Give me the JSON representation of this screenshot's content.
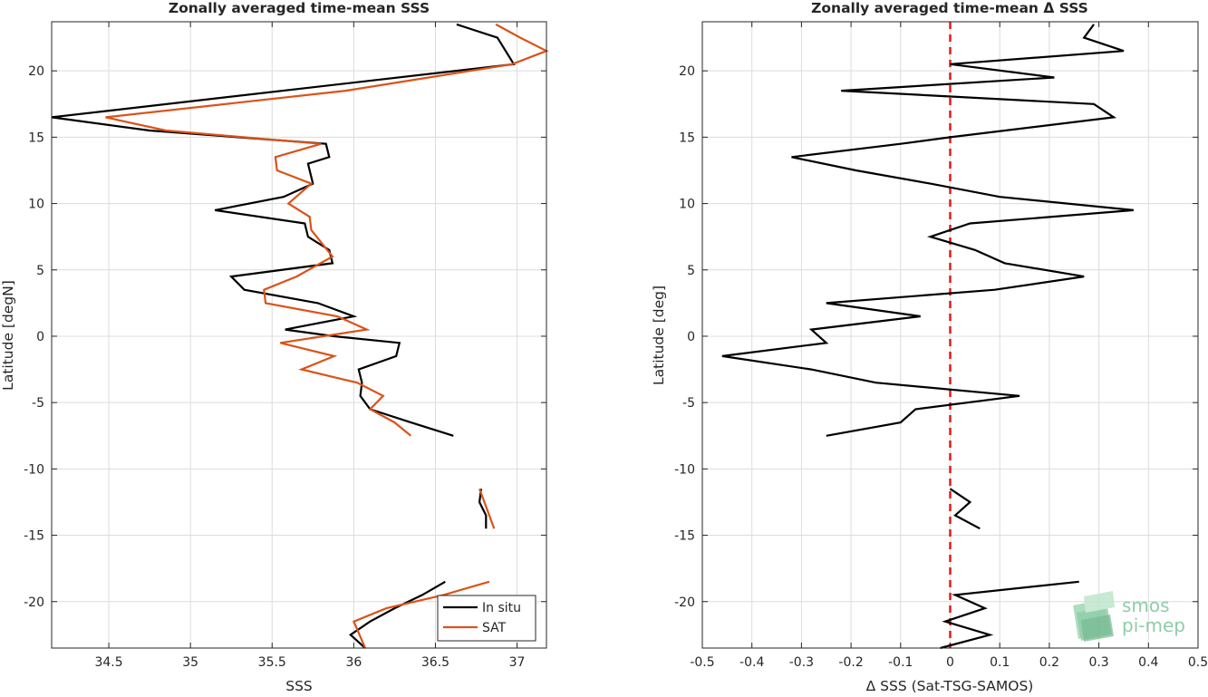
{
  "chart_data": [
    {
      "type": "line",
      "title": "Zonally averaged time-mean SSS",
      "xlabel": "SSS",
      "ylabel": "Latitude [degN]",
      "xlim": [
        34.15,
        37.18
      ],
      "ylim": [
        -23.5,
        23.7
      ],
      "xticks": [
        34.5,
        35,
        35.5,
        36,
        36.5,
        37
      ],
      "xtick_labels": [
        "34.5",
        "35",
        "35.5",
        "36",
        "36.5",
        "37"
      ],
      "yticks": [
        -20,
        -15,
        -10,
        -5,
        0,
        5,
        10,
        15,
        20
      ],
      "ytick_labels": [
        "-20",
        "-15",
        "-10",
        "-5",
        "0",
        "5",
        "10",
        "15",
        "20"
      ],
      "grid": true,
      "legend": "bottom-right",
      "series": [
        {
          "name": "In situ",
          "color": "#000000",
          "segments": [
            [
              [
                36.63,
                23.5
              ],
              [
                36.88,
                22.5
              ],
              [
                36.98,
                20.5
              ],
              [
                34.15,
                16.5
              ],
              [
                34.75,
                15.5
              ],
              [
                35.83,
                14.5
              ],
              [
                35.85,
                13.5
              ],
              [
                35.72,
                13.0
              ],
              [
                35.75,
                11.5
              ],
              [
                35.57,
                10.5
              ],
              [
                35.15,
                9.5
              ],
              [
                35.7,
                8.5
              ],
              [
                35.72,
                7.5
              ],
              [
                35.85,
                6.5
              ],
              [
                35.87,
                5.5
              ],
              [
                35.25,
                4.5
              ],
              [
                35.33,
                3.5
              ],
              [
                35.78,
                2.5
              ],
              [
                36.0,
                1.5
              ],
              [
                35.58,
                0.5
              ],
              [
                35.88,
                0.0
              ],
              [
                36.28,
                -0.5
              ],
              [
                36.26,
                -1.5
              ],
              [
                36.03,
                -2.5
              ],
              [
                36.05,
                -3.5
              ],
              [
                36.04,
                -4.5
              ],
              [
                36.1,
                -5.5
              ],
              [
                36.35,
                -6.5
              ],
              [
                36.61,
                -7.5
              ]
            ],
            [
              [
                36.78,
                -11.5
              ],
              [
                36.77,
                -12.5
              ],
              [
                36.81,
                -13.5
              ],
              [
                36.81,
                -14.5
              ]
            ],
            [
              [
                36.56,
                -18.5
              ],
              [
                36.42,
                -19.5
              ],
              [
                36.25,
                -20.5
              ],
              [
                36.1,
                -21.5
              ],
              [
                35.98,
                -22.5
              ],
              [
                36.07,
                -23.5
              ]
            ]
          ]
        },
        {
          "name": "SAT",
          "color": "#d95319",
          "segments": [
            [
              [
                36.87,
                23.5
              ],
              [
                37.02,
                22.5
              ],
              [
                37.18,
                21.5
              ],
              [
                36.97,
                20.5
              ],
              [
                35.95,
                18.5
              ],
              [
                34.48,
                16.5
              ],
              [
                34.85,
                15.5
              ],
              [
                35.8,
                14.5
              ],
              [
                35.52,
                13.5
              ],
              [
                35.53,
                12.5
              ],
              [
                35.74,
                11.5
              ],
              [
                35.6,
                10.0
              ],
              [
                35.73,
                9.0
              ],
              [
                35.74,
                8.0
              ],
              [
                35.87,
                6.0
              ],
              [
                35.65,
                4.5
              ],
              [
                35.45,
                3.5
              ],
              [
                35.46,
                2.5
              ],
              [
                35.9,
                1.5
              ],
              [
                36.08,
                0.5
              ],
              [
                35.55,
                -0.5
              ],
              [
                35.88,
                -1.5
              ],
              [
                35.68,
                -2.5
              ],
              [
                36.02,
                -3.5
              ],
              [
                36.18,
                -4.5
              ],
              [
                36.1,
                -5.5
              ],
              [
                36.25,
                -6.5
              ],
              [
                36.35,
                -7.5
              ]
            ],
            [
              [
                36.77,
                -11.5
              ],
              [
                36.86,
                -14.5
              ]
            ],
            [
              [
                36.83,
                -18.5
              ],
              [
                36.55,
                -19.5
              ],
              [
                36.2,
                -20.5
              ],
              [
                36.0,
                -21.5
              ],
              [
                36.07,
                -23.5
              ]
            ]
          ]
        }
      ]
    },
    {
      "type": "line",
      "title": "Zonally averaged time-mean Δ SSS",
      "xlabel": "Δ SSS (Sat-TSG-SAMOS)",
      "ylabel": "Latitude [deg]",
      "xlim": [
        -0.5,
        0.5
      ],
      "ylim": [
        -23.5,
        23.7
      ],
      "xticks": [
        -0.5,
        -0.4,
        -0.3,
        -0.2,
        -0.1,
        0,
        0.1,
        0.2,
        0.3,
        0.4,
        0.5
      ],
      "xtick_labels": [
        "-0.5",
        "-0.4",
        "-0.3",
        "-0.2",
        "-0.1",
        "0",
        "0.1",
        "0.2",
        "0.3",
        "0.4",
        "0.5"
      ],
      "yticks": [
        -20,
        -15,
        -10,
        -5,
        0,
        5,
        10,
        15,
        20
      ],
      "ytick_labels": [
        "-20",
        "-15",
        "-10",
        "-5",
        "0",
        "5",
        "10",
        "15",
        "20"
      ],
      "grid": true,
      "reference_line": {
        "x": 0,
        "color": "#e31a1c",
        "style": "dashed"
      },
      "series": [
        {
          "color": "#000000",
          "segments": [
            [
              [
                0.29,
                23.5
              ],
              [
                0.27,
                22.5
              ],
              [
                0.35,
                21.5
              ],
              [
                0.0,
                20.5
              ],
              [
                0.21,
                19.5
              ],
              [
                -0.22,
                18.5
              ],
              [
                0.29,
                17.5
              ],
              [
                0.33,
                16.5
              ],
              [
                0.0,
                15.0
              ],
              [
                -0.1,
                14.5
              ],
              [
                -0.32,
                13.5
              ],
              [
                -0.19,
                12.5
              ],
              [
                -0.04,
                11.5
              ],
              [
                0.1,
                10.5
              ],
              [
                0.37,
                9.5
              ],
              [
                0.04,
                8.5
              ],
              [
                -0.04,
                7.5
              ],
              [
                0.05,
                6.5
              ],
              [
                0.11,
                5.5
              ],
              [
                0.27,
                4.5
              ],
              [
                0.09,
                3.5
              ],
              [
                -0.25,
                2.5
              ],
              [
                -0.06,
                1.5
              ],
              [
                -0.28,
                0.5
              ],
              [
                -0.25,
                -0.5
              ],
              [
                -0.46,
                -1.5
              ],
              [
                -0.28,
                -2.5
              ],
              [
                -0.15,
                -3.5
              ],
              [
                0.14,
                -4.5
              ],
              [
                -0.07,
                -5.5
              ],
              [
                -0.1,
                -6.5
              ],
              [
                -0.25,
                -7.5
              ]
            ],
            [
              [
                0.0,
                -11.5
              ],
              [
                0.04,
                -12.5
              ],
              [
                0.01,
                -13.5
              ],
              [
                0.06,
                -14.5
              ]
            ],
            [
              [
                0.26,
                -18.5
              ],
              [
                0.01,
                -19.5
              ],
              [
                0.07,
                -20.5
              ],
              [
                -0.01,
                -21.5
              ],
              [
                0.08,
                -22.5
              ],
              [
                -0.02,
                -23.5
              ]
            ]
          ]
        }
      ]
    }
  ],
  "legend": {
    "items": [
      {
        "label": "In situ",
        "color": "#000000"
      },
      {
        "label": "SAT",
        "color": "#d95319"
      }
    ]
  },
  "logo": {
    "line1": "smos",
    "line2": "pi-mep",
    "color": "#7cc49a"
  }
}
